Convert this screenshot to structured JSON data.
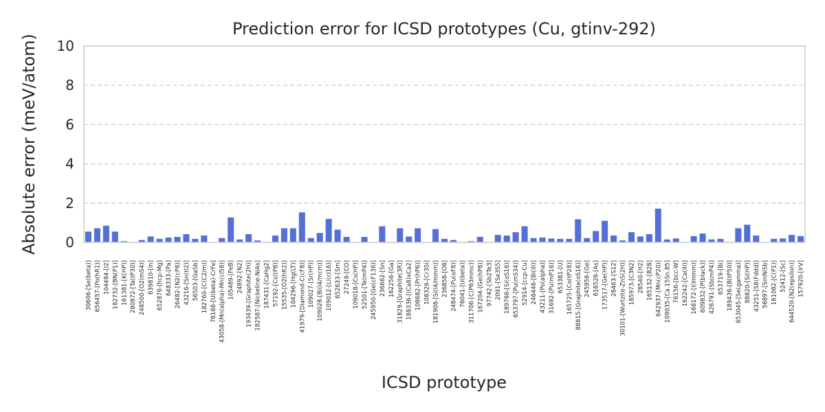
{
  "chart_data": {
    "type": "bar",
    "title": "Prediction error for ICSD prototypes (Cu, gtinv-292)",
    "xlabel": "ICSD prototype",
    "ylabel": "Absolute error (meV/atom)",
    "ylim": [
      0,
      10
    ],
    "yticks": [
      "0",
      "2",
      "4",
      "6",
      "8",
      "10"
    ],
    "grid": "y-dashed",
    "bar_color": "#5470d6",
    "categories": [
      "30606-[Se(beta)]",
      "656457-[Po(hR1)]",
      "104484-[I2]",
      "182732-[BN(P1)]",
      "161381-[K(HP)]",
      "280872-[Ta(tP30)]",
      "248500-[O2(mS4)]",
      "639810-[In]",
      "652876-[hcp-Mg]",
      "648333-[Pa]",
      "26482-[N2(cP8)]",
      "43216-[Sn(tI2)]",
      "56503-[GaSb]",
      "182760-[C(C2/m)]",
      "76166-[U(beta)-CrFe]",
      "43058-[Mn(alpha)-Mn(cI58)]",
      "105489-[FeB]",
      "24892-[N2]",
      "193439-[Graphite(2H)]",
      "182587-[Nickeline-NiAs]",
      "187431-[CaHg2]",
      "57192-[Cs(tP8)]",
      "15535-[O2(hR2)]",
      "104296-[Hg(LT)]",
      "41979-[Diamond-C(cF8)]",
      "109027-[Sr(HP)]",
      "109028-[Bi(I4/mcm)]",
      "109012-[Li(cI16)]",
      "652633-[Sm]",
      "27249-[CO]",
      "109018-[Cs(HP)]",
      "52501-[Te(mP4)]",
      "245950-[Ge(cF136)]",
      "236662-[Sn]",
      "162256-[Ga]",
      "31829-[Graphite(3R)]",
      "188336-[(Ca8)xCa2]",
      "108682-[Pr(hP6)]",
      "108326-[Cr3Si]",
      "181908-[Si(I4/mmm)]",
      "236858-[O8]",
      "248474-[Pu(oF8)]",
      "76041-[U(beta)]",
      "311706-[C(P63mmc)]",
      "167204-[Ge(hP8)]",
      "97742-[Sb2Te3]",
      "2091-[Se3S5]",
      "189786-[Si(oS16)]",
      "653797-[Pu(mS34)]",
      "52914-[ccp-Cu]",
      "246446-[Bi(III)]",
      "43211-[Po(alpha)]",
      "31692-[Pu(mP16)]",
      "653381-[U]",
      "165725-[Co(tP28)]",
      "88815-[Graphite(oS16)]",
      "245956-[Ge]",
      "616526-[As]",
      "173517-[Ge(HP)]",
      "26463-[S12]",
      "30101-[Wurtzite-ZnS(2H)]",
      "185973-[C3N2]",
      "28540-[H2]",
      "165132-[B28]",
      "642937-[Mn(cP20)]",
      "109035-[Ca.15Sn.85]",
      "76156-[bcc-W]",
      "162242-[Ca(III)]",
      "168172-[I(Immm)]",
      "609832-[P(black)]",
      "426791-[Sb(mP4)]",
      "653719-[Bi]",
      "189436-[B(tP50)]",
      "653045-[Se(gamma)]",
      "88820-[Si(HP)]",
      "43251-[S8(Fddd)]",
      "56897-[SmNiSb]",
      "181082-[C(P1)]",
      "52412-[Sc]",
      "644520-[N2(epsilon)]",
      "157920-[IrV]"
    ],
    "values": [
      0.55,
      0.72,
      0.85,
      0.55,
      0.06,
      0.02,
      0.12,
      0.3,
      0.18,
      0.25,
      0.28,
      0.42,
      0.18,
      0.35,
      0.0,
      0.22,
      1.27,
      0.15,
      0.42,
      0.1,
      0.02,
      0.35,
      0.72,
      0.72,
      1.53,
      0.22,
      0.48,
      1.2,
      0.65,
      0.28,
      0.0,
      0.28,
      0.0,
      0.82,
      0.0,
      0.72,
      0.3,
      0.72,
      0.0,
      0.68,
      0.18,
      0.12,
      0.0,
      0.06,
      0.28,
      0.0,
      0.38,
      0.35,
      0.52,
      0.82,
      0.22,
      0.25,
      0.2,
      0.18,
      0.18,
      1.18,
      0.22,
      0.58,
      1.1,
      0.35,
      0.1,
      0.52,
      0.3,
      0.42,
      1.72,
      0.15,
      0.2,
      0.02,
      0.32,
      0.45,
      0.15,
      0.18,
      0.0,
      0.72,
      0.9,
      0.35,
      0.0,
      0.18,
      0.2,
      0.38,
      0.32
    ]
  }
}
